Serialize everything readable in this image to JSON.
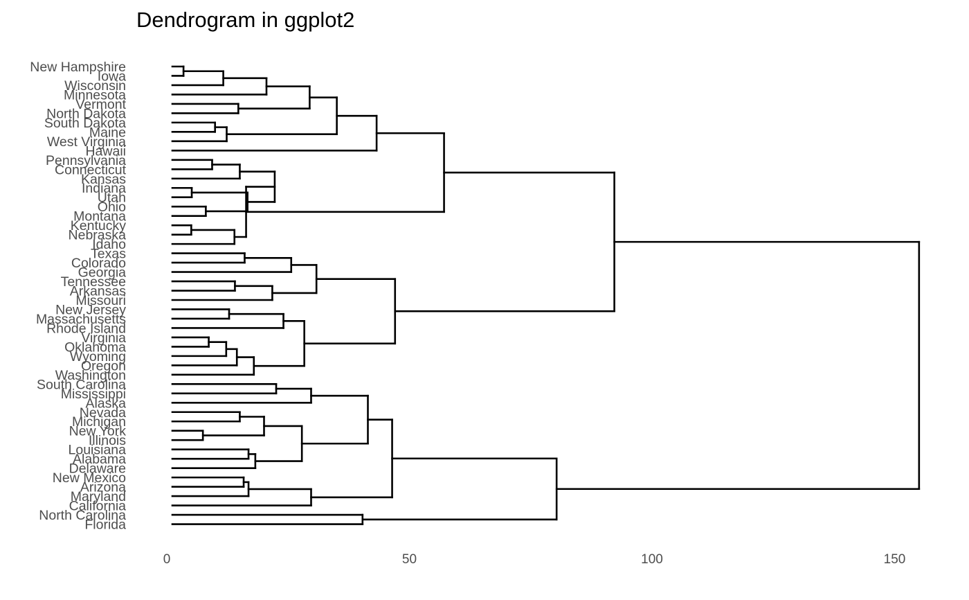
{
  "chart_data": {
    "type": "dendrogram",
    "title": "Dendrogram in ggplot2",
    "orientation": "horizontal",
    "leaves": [
      "New Hampshire",
      "Iowa",
      "Wisconsin",
      "Minnesota",
      "Vermont",
      "North Dakota",
      "South Dakota",
      "Maine",
      "West Virginia",
      "Hawaii",
      "Pennsylvania",
      "Connecticut",
      "Kansas",
      "Indiana",
      "Utah",
      "Ohio",
      "Montana",
      "Kentucky",
      "Nebraska",
      "Idaho",
      "Texas",
      "Colorado",
      "Georgia",
      "Tennessee",
      "Arkansas",
      "Missouri",
      "New Jersey",
      "Massachusetts",
      "Rhode Island",
      "Virginia",
      "Oklahoma",
      "Wyoming",
      "Oregon",
      "Washington",
      "South Carolina",
      "Mississippi",
      "Alaska",
      "Nevada",
      "Michigan",
      "New York",
      "Illinois",
      "Louisiana",
      "Alabama",
      "Delaware",
      "New Mexico",
      "Arizona",
      "Maryland",
      "California",
      "North Carolina",
      "Florida"
    ],
    "merges": [
      {
        "a": "New Hampshire",
        "b": "Iowa",
        "h": 2.3
      },
      {
        "a": "m1",
        "b": "Wisconsin",
        "h": 10.5
      },
      {
        "a": "m2",
        "b": "Minnesota",
        "h": 19.4
      },
      {
        "a": "Vermont",
        "b": "North Dakota",
        "h": 13.6
      },
      {
        "a": "m3",
        "b": "m4",
        "h": 28.3
      },
      {
        "a": "South Dakota",
        "b": "Maine",
        "h": 8.8
      },
      {
        "a": "m6",
        "b": "West Virginia",
        "h": 11.2
      },
      {
        "a": "m5",
        "b": "m7",
        "h": 33.9
      },
      {
        "a": "m8",
        "b": "Hawaii",
        "h": 42.1
      },
      {
        "a": "Pennsylvania",
        "b": "Connecticut",
        "h": 8.2
      },
      {
        "a": "m10",
        "b": "Kansas",
        "h": 13.9
      },
      {
        "a": "Indiana",
        "b": "Utah",
        "h": 4.0
      },
      {
        "a": "Ohio",
        "b": "Montana",
        "h": 6.9
      },
      {
        "a": "m12",
        "b": "m13",
        "h": 15.5
      },
      {
        "a": "m11",
        "b": "m14",
        "h": 21.1
      },
      {
        "a": "Kentucky",
        "b": "Nebraska",
        "h": 3.9
      },
      {
        "a": "m16",
        "b": "Idaho",
        "h": 12.8
      },
      {
        "a": "m15",
        "b": "m17",
        "h": 15.2
      },
      {
        "a": "Texas",
        "b": "Colorado",
        "h": 14.9
      },
      {
        "a": "m19",
        "b": "Georgia",
        "h": 24.5
      },
      {
        "a": "Tennessee",
        "b": "Arkansas",
        "h": 12.9
      },
      {
        "a": "m21",
        "b": "Missouri",
        "h": 20.6
      },
      {
        "a": "m20",
        "b": "m22",
        "h": 29.7
      },
      {
        "a": "New Jersey",
        "b": "Massachusetts",
        "h": 11.7
      },
      {
        "a": "m24",
        "b": "Rhode Island",
        "h": 22.9
      },
      {
        "a": "Virginia",
        "b": "Oklahoma",
        "h": 7.5
      },
      {
        "a": "m26",
        "b": "Wyoming",
        "h": 11.1
      },
      {
        "a": "m27",
        "b": "Oregon",
        "h": 13.3
      },
      {
        "a": "m28",
        "b": "Washington",
        "h": 16.8
      },
      {
        "a": "m25",
        "b": "m29",
        "h": 27.2
      },
      {
        "a": "m23",
        "b": "m30",
        "h": 45.9
      },
      {
        "a": "South Carolina",
        "b": "Mississippi",
        "h": 21.4
      },
      {
        "a": "m32",
        "b": "Alaska",
        "h": 28.6
      },
      {
        "a": "Nevada",
        "b": "Michigan",
        "h": 13.9
      },
      {
        "a": "New York",
        "b": "Illinois",
        "h": 6.3
      },
      {
        "a": "m34",
        "b": "m35",
        "h": 18.9
      },
      {
        "a": "Louisiana",
        "b": "Alabama",
        "h": 15.7
      },
      {
        "a": "m37",
        "b": "Delaware",
        "h": 17.1
      },
      {
        "a": "m36",
        "b": "m38",
        "h": 26.7
      },
      {
        "a": "m33",
        "b": "m39",
        "h": 40.3
      },
      {
        "a": "New Mexico",
        "b": "Arizona",
        "h": 14.7
      },
      {
        "a": "m41",
        "b": "Maryland",
        "h": 15.7
      },
      {
        "a": "m42",
        "b": "California",
        "h": 28.6
      },
      {
        "a": "m40",
        "b": "m43",
        "h": 45.3
      },
      {
        "a": "North Carolina",
        "b": "Florida",
        "h": 39.2
      },
      {
        "a": "m44",
        "b": "m45",
        "h": 79.2
      },
      {
        "a": "m9",
        "b": "m18",
        "h": 56.0
      },
      {
        "a": "m47",
        "b": "m31",
        "h": 91.1
      },
      {
        "a": "m48",
        "b": "m46",
        "h": 153.9
      }
    ],
    "xaxis": {
      "ticks": [
        0,
        50,
        100,
        150
      ],
      "range": [
        0,
        155
      ]
    },
    "grid": false,
    "legend": "none"
  }
}
